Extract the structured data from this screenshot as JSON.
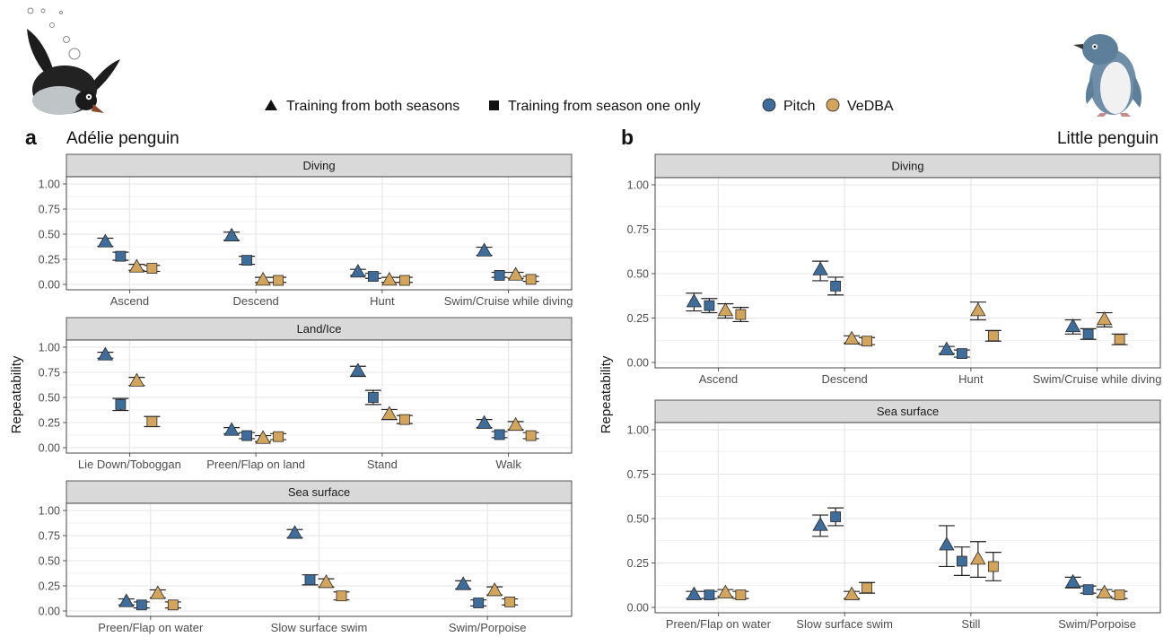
{
  "legend": {
    "both_seasons": "Training from both seasons",
    "season_one": "Training from season one only",
    "pitch": "Pitch",
    "vedba": "VeDBA"
  },
  "colors": {
    "pitch": "#3E6D9C",
    "vedba": "#D3A55C",
    "strip_bg": "#D9D9D9",
    "grid": "#E5E5E5"
  },
  "icons": {
    "left": "adelie-penguin-illustration",
    "right": "little-penguin-illustration"
  },
  "chart_data": [
    {
      "type": "scatter",
      "panel_letter": "a",
      "title": "Adélie penguin",
      "ylabel": "Repeatability",
      "ylim": [
        0,
        1
      ],
      "yticks": [
        "0.00",
        "0.25",
        "0.50",
        "0.75",
        "1.00"
      ],
      "series": [
        {
          "name": "Pitch",
          "model": "Training from both seasons",
          "marker": "triangle"
        },
        {
          "name": "Pitch",
          "model": "Training from season one only",
          "marker": "square"
        },
        {
          "name": "VeDBA",
          "model": "Training from both seasons",
          "marker": "triangle"
        },
        {
          "name": "VeDBA",
          "model": "Training from season one only",
          "marker": "square"
        }
      ],
      "facets": [
        {
          "label": "Diving",
          "categories": [
            "Ascend",
            "Descend",
            "Hunt",
            "Swim/Cruise while diving"
          ],
          "values": [
            [
              0.42,
              0.28,
              0.17,
              0.16
            ],
            [
              0.48,
              0.24,
              0.04,
              0.04
            ],
            [
              0.12,
              0.08,
              0.04,
              0.04
            ],
            [
              0.33,
              0.09,
              0.09,
              0.05
            ]
          ],
          "lower": [
            [
              0.38,
              0.24,
              0.14,
              0.13
            ],
            [
              0.44,
              0.2,
              0.02,
              0.02
            ],
            [
              0.09,
              0.06,
              0.02,
              0.02
            ],
            [
              0.29,
              0.07,
              0.06,
              0.03
            ]
          ],
          "upper": [
            [
              0.46,
              0.32,
              0.2,
              0.19
            ],
            [
              0.52,
              0.28,
              0.07,
              0.07
            ],
            [
              0.15,
              0.11,
              0.07,
              0.07
            ],
            [
              0.37,
              0.12,
              0.12,
              0.08
            ]
          ]
        },
        {
          "label": "Land/Ice",
          "categories": [
            "Lie Down/Toboggan",
            "Preen/Flap on land",
            "Stand",
            "Walk"
          ],
          "values": [
            [
              0.92,
              0.43,
              0.66,
              0.26
            ],
            [
              0.17,
              0.12,
              0.09,
              0.11
            ],
            [
              0.76,
              0.5,
              0.33,
              0.28
            ],
            [
              0.24,
              0.13,
              0.22,
              0.12
            ]
          ],
          "lower": [
            [
              0.89,
              0.37,
              0.62,
              0.21
            ],
            [
              0.14,
              0.09,
              0.06,
              0.08
            ],
            [
              0.71,
              0.43,
              0.28,
              0.24
            ],
            [
              0.2,
              0.1,
              0.18,
              0.09
            ]
          ],
          "upper": [
            [
              0.95,
              0.49,
              0.7,
              0.31
            ],
            [
              0.2,
              0.15,
              0.12,
              0.14
            ],
            [
              0.81,
              0.57,
              0.38,
              0.32
            ],
            [
              0.28,
              0.16,
              0.26,
              0.15
            ]
          ]
        },
        {
          "label": "Sea surface",
          "categories": [
            "Preen/Flap on water",
            "Slow surface swim",
            "Swim/Porpoise"
          ],
          "values": [
            [
              0.09,
              0.06,
              0.17,
              0.06
            ],
            [
              0.77,
              0.31,
              0.28,
              0.15
            ],
            [
              0.26,
              0.08,
              0.2,
              0.09
            ]
          ],
          "lower": [
            [
              0.06,
              0.03,
              0.13,
              0.03
            ],
            [
              0.73,
              0.26,
              0.24,
              0.11
            ],
            [
              0.22,
              0.05,
              0.16,
              0.06
            ]
          ],
          "upper": [
            [
              0.12,
              0.09,
              0.21,
              0.09
            ],
            [
              0.81,
              0.36,
              0.32,
              0.19
            ],
            [
              0.3,
              0.11,
              0.24,
              0.12
            ]
          ]
        }
      ]
    },
    {
      "type": "scatter",
      "panel_letter": "b",
      "title": "Little penguin",
      "ylabel": "Repeatability",
      "ylim": [
        0,
        1
      ],
      "yticks": [
        "0.00",
        "0.25",
        "0.50",
        "0.75",
        "1.00"
      ],
      "series": [
        {
          "name": "Pitch",
          "model": "Training from both seasons",
          "marker": "triangle"
        },
        {
          "name": "Pitch",
          "model": "Training from season one only",
          "marker": "square"
        },
        {
          "name": "VeDBA",
          "model": "Training from both seasons",
          "marker": "triangle"
        },
        {
          "name": "VeDBA",
          "model": "Training from season one only",
          "marker": "square"
        }
      ],
      "facets": [
        {
          "label": "Diving",
          "categories": [
            "Ascend",
            "Descend",
            "Hunt",
            "Swim/Cruise while diving"
          ],
          "values": [
            [
              0.34,
              0.32,
              0.29,
              0.27
            ],
            [
              0.52,
              0.43,
              0.13,
              0.12
            ],
            [
              0.07,
              0.05,
              0.29,
              0.15
            ],
            [
              0.2,
              0.16,
              0.24,
              0.13
            ]
          ],
          "lower": [
            [
              0.29,
              0.28,
              0.25,
              0.23
            ],
            [
              0.46,
              0.38,
              0.11,
              0.1
            ],
            [
              0.05,
              0.03,
              0.24,
              0.12
            ],
            [
              0.16,
              0.13,
              0.2,
              0.1
            ]
          ],
          "upper": [
            [
              0.39,
              0.36,
              0.33,
              0.31
            ],
            [
              0.57,
              0.48,
              0.15,
              0.14
            ],
            [
              0.09,
              0.07,
              0.34,
              0.18
            ],
            [
              0.24,
              0.19,
              0.28,
              0.16
            ]
          ]
        },
        {
          "label": "Sea surface",
          "categories": [
            "Preen/Flap on water",
            "Slow surface swim",
            "Still",
            "Swim/Porpoise"
          ],
          "values": [
            [
              0.07,
              0.07,
              0.08,
              0.07
            ],
            [
              0.46,
              0.51,
              0.07,
              0.11
            ],
            [
              0.35,
              0.26,
              0.27,
              0.23
            ],
            [
              0.14,
              0.1,
              0.08,
              0.07
            ]
          ],
          "lower": [
            [
              0.05,
              0.05,
              0.06,
              0.05
            ],
            [
              0.4,
              0.46,
              0.05,
              0.08
            ],
            [
              0.23,
              0.18,
              0.17,
              0.15
            ],
            [
              0.11,
              0.08,
              0.06,
              0.05
            ]
          ],
          "upper": [
            [
              0.09,
              0.09,
              0.1,
              0.09
            ],
            [
              0.52,
              0.56,
              0.09,
              0.14
            ],
            [
              0.46,
              0.34,
              0.37,
              0.31
            ],
            [
              0.17,
              0.12,
              0.1,
              0.09
            ]
          ]
        }
      ]
    }
  ]
}
